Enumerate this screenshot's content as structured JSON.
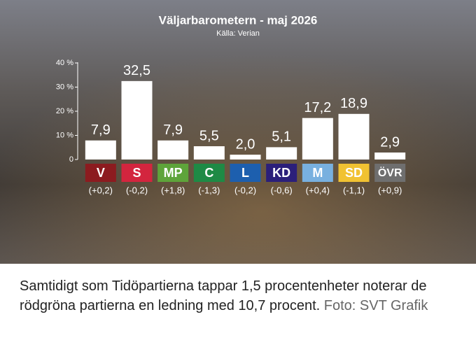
{
  "chart_data": {
    "type": "bar",
    "title": "Väljarbarometern - maj 2026",
    "subtitle": "Källa: Verian",
    "categories": [
      "V",
      "S",
      "MP",
      "C",
      "L",
      "KD",
      "M",
      "SD",
      "ÖVR"
    ],
    "values": [
      7.9,
      32.5,
      7.9,
      5.5,
      2.0,
      5.1,
      17.2,
      18.9,
      2.9
    ],
    "value_labels": [
      "7,9",
      "32,5",
      "7,9",
      "5,5",
      "2,0",
      "5,1",
      "17,2",
      "18,9",
      "2,9"
    ],
    "change_labels": [
      "(+0,2)",
      "(-0,2)",
      "(+1,8)",
      "(-1,3)",
      "(-0,2)",
      "(-0,6)",
      "(+0,4)",
      "(-1,1)",
      "(+0,9)"
    ],
    "colors": [
      "#8c1b1f",
      "#d3253e",
      "#5ea43a",
      "#1e8a45",
      "#1d5fae",
      "#2b1f7a",
      "#78b0df",
      "#f1c232",
      "#6f6f6f"
    ],
    "color": "#ffffff",
    "ylim": [
      0,
      40
    ],
    "yticks": [
      0,
      {
        "value": 10,
        "label": "10 %"
      },
      {
        "value": 20,
        "label": "20 %"
      },
      {
        "value": 30,
        "label": "30 %"
      },
      {
        "value": 40,
        "label": "40 %"
      }
    ]
  },
  "caption": {
    "text": "Samtidigt som Tidöpartierna tappar 1,5 procentenheter noterar de rödgröna partierna en ledning med 10,7 procent.",
    "credit": "Foto: SVT Grafik"
  }
}
